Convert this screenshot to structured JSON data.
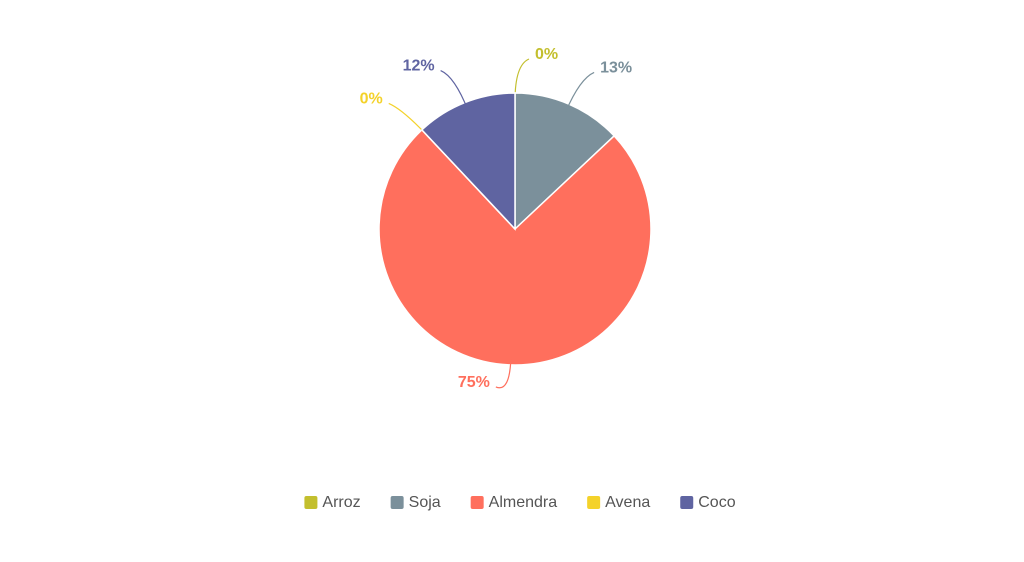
{
  "chart_data": {
    "type": "pie",
    "categories": [
      "Arroz",
      "Soja",
      "Almendra",
      "Avena",
      "Coco"
    ],
    "values": [
      0,
      13,
      75,
      0,
      12
    ],
    "value_labels": [
      "0%",
      "13%",
      "75%",
      "0%",
      "12%"
    ],
    "colors": [
      "#c3bf2e",
      "#7b909b",
      "#ff6f5d",
      "#f4d22a",
      "#5f64a1"
    ],
    "legend": "bottom"
  }
}
